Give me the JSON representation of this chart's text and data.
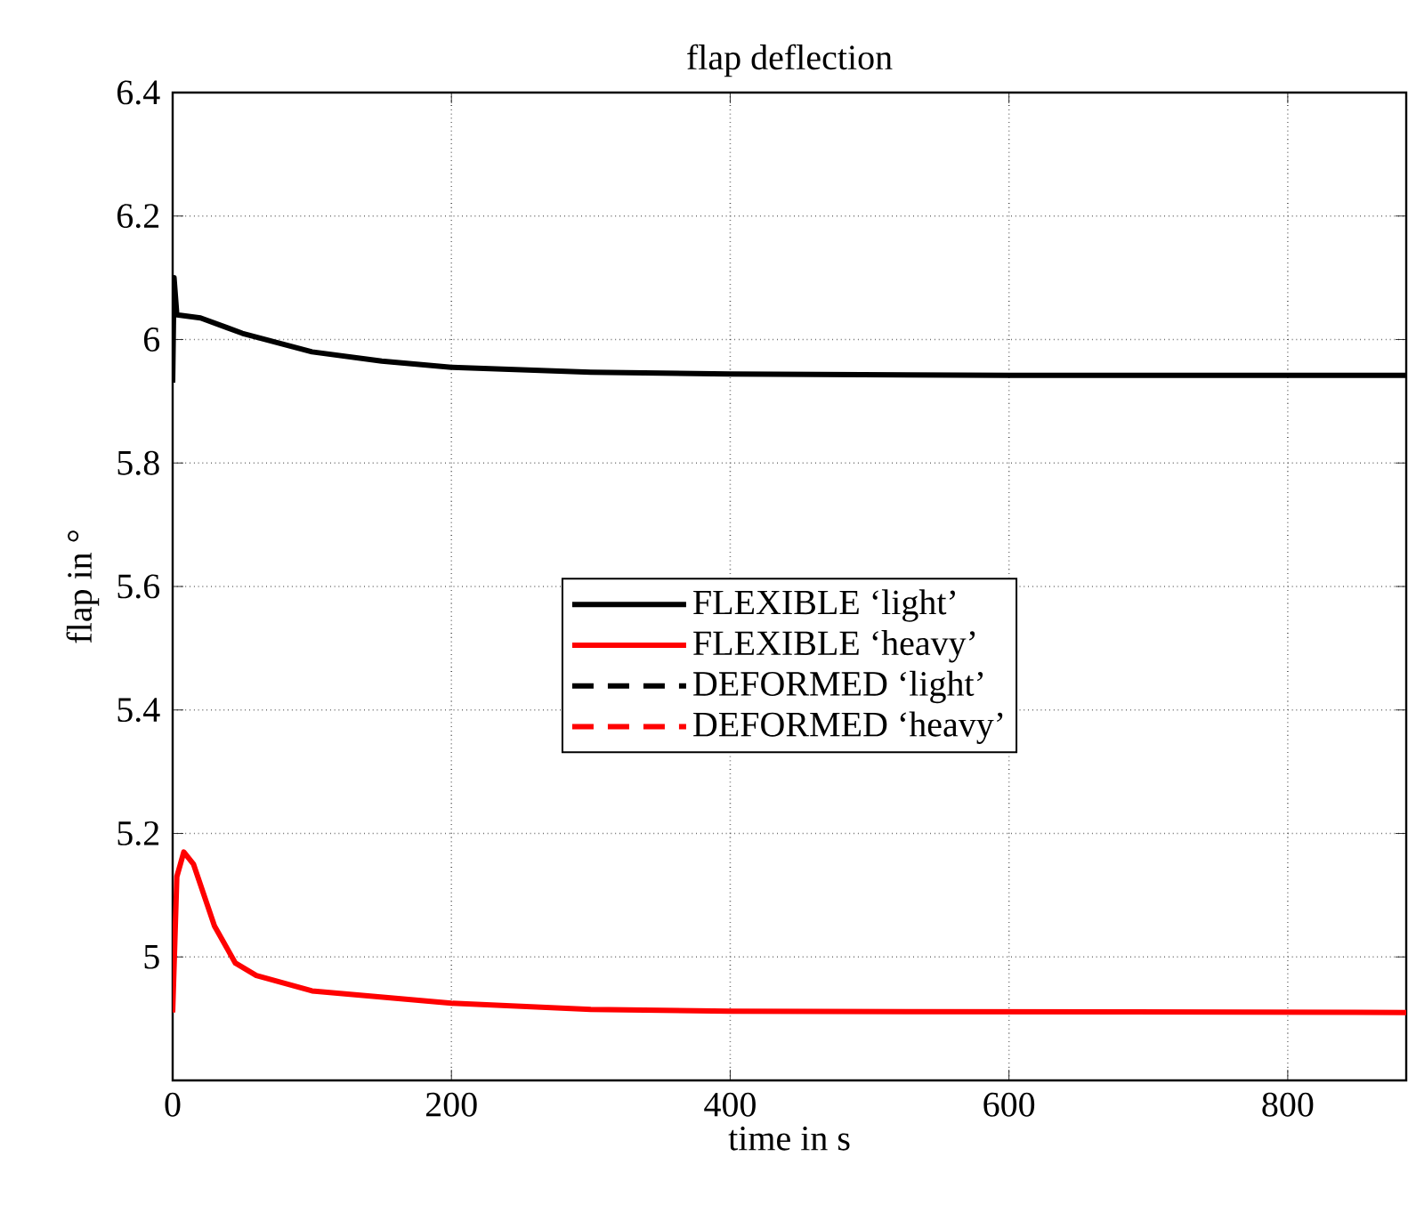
{
  "chart_data": {
    "type": "line",
    "title": "flap deflection",
    "xlabel": "time in s",
    "ylabel": "flap in °",
    "xlim": [
      0,
      885
    ],
    "xticks": [
      0,
      200,
      400,
      600,
      800
    ],
    "ylim": [
      4.8,
      6.4
    ],
    "yticks": [
      5,
      5.2,
      5.4,
      5.6,
      5.8,
      6,
      6.2,
      6.4
    ],
    "grid": true,
    "legend": "center",
    "series": [
      {
        "name": "FLEXIBLE ‘light’",
        "color": "#000000",
        "line_style": "solid",
        "x": [
          0,
          1,
          3,
          20,
          50,
          100,
          150,
          200,
          300,
          400,
          600,
          885
        ],
        "values": [
          5.93,
          6.1,
          6.04,
          6.035,
          6.01,
          5.98,
          5.965,
          5.955,
          5.947,
          5.944,
          5.942,
          5.942
        ]
      },
      {
        "name": "FLEXIBLE ‘heavy’",
        "color": "#ff0000",
        "line_style": "solid",
        "x": [
          0,
          3,
          8,
          15,
          30,
          45,
          60,
          100,
          200,
          300,
          400,
          885
        ],
        "values": [
          4.91,
          5.13,
          5.17,
          5.15,
          5.05,
          4.99,
          4.97,
          4.945,
          4.925,
          4.915,
          4.912,
          4.91
        ]
      },
      {
        "name": "DEFORMED ‘light’",
        "color": "#000000",
        "line_style": "dashed"
      },
      {
        "name": "DEFORMED ‘heavy’",
        "color": "#ff0000",
        "line_style": "dashed"
      }
    ]
  }
}
